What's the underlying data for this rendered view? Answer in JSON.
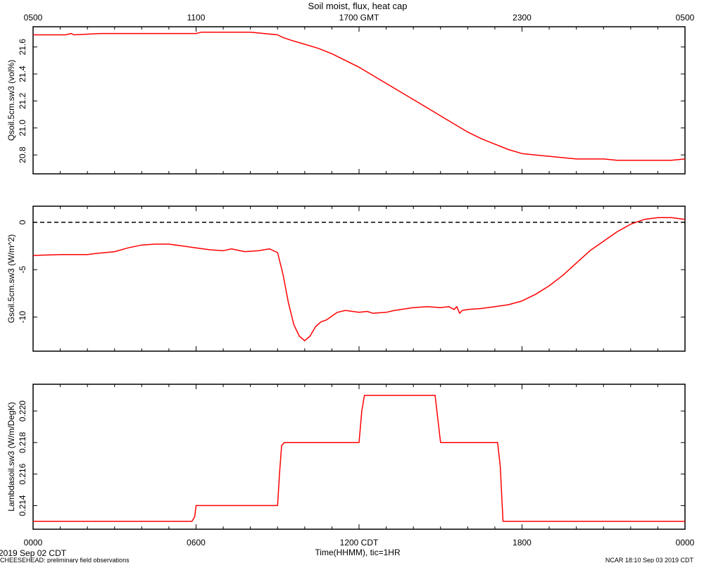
{
  "title": "Soil moist, flux, heat cap",
  "top_ticks": [
    "0500",
    "1100",
    "1700 GMT",
    "2300",
    "0500"
  ],
  "bottom_ticks": [
    "0000",
    "0600",
    "1200 CDT",
    "1800",
    "0000"
  ],
  "xlabel": "Time(HHMM), tic=1HR",
  "date_label": "2019 Sep 02 CDT",
  "footer_left": "CHEESEHEAD: preliminary field observations",
  "footer_right": "NCAR 18:10 Sep 03 2019 CDT",
  "line_color": "#ff0000",
  "chart_data": [
    {
      "type": "line",
      "ylabel": "Qsoil.5cm.sw3 (vol%)",
      "ylim": [
        20.66,
        21.75
      ],
      "yticks": [
        20.8,
        21.0,
        21.2,
        21.4,
        21.6
      ],
      "ytick_labels": [
        "20.8",
        "21.0",
        "21.2",
        "21.4",
        "21.6"
      ],
      "xlim_hours": [
        0,
        24
      ],
      "series": [
        {
          "x": [
            0,
            1.2,
            1.4,
            1.5,
            2.5,
            2.7,
            4,
            6,
            6.2,
            6.5,
            8,
            8.5,
            9,
            9.2,
            9.5,
            10,
            10.5,
            11,
            11.5,
            12,
            12.5,
            13,
            13.5,
            14,
            14.5,
            15,
            15.5,
            16,
            16.5,
            17,
            17.5,
            18,
            18.5,
            19,
            19.5,
            20,
            20.5,
            21,
            21.5,
            22,
            22.5,
            23,
            23.5,
            24
          ],
          "y": [
            21.69,
            21.69,
            21.7,
            21.69,
            21.7,
            21.7,
            21.7,
            21.7,
            21.71,
            21.71,
            21.71,
            21.7,
            21.69,
            21.67,
            21.65,
            21.62,
            21.59,
            21.55,
            21.5,
            21.45,
            21.39,
            21.33,
            21.27,
            21.21,
            21.15,
            21.09,
            21.03,
            20.97,
            20.92,
            20.88,
            20.84,
            20.81,
            20.8,
            20.79,
            20.78,
            20.77,
            20.77,
            20.77,
            20.76,
            20.76,
            20.76,
            20.76,
            20.76,
            20.77
          ]
        }
      ]
    },
    {
      "type": "line",
      "ylabel": "Gsoil.5cm.sw3 (W/m^2)",
      "ylim": [
        -13.6,
        1.7
      ],
      "yticks": [
        -10,
        -5,
        0
      ],
      "ytick_labels": [
        "-10",
        "-5",
        "0"
      ],
      "zero_line": true,
      "xlim_hours": [
        0,
        24
      ],
      "series": [
        {
          "x": [
            0,
            1,
            2,
            2.3,
            3,
            3.5,
            4,
            4.5,
            5,
            5.5,
            6,
            6.5,
            7,
            7.3,
            7.8,
            8.3,
            8.7,
            9,
            9.2,
            9.4,
            9.6,
            9.8,
            10,
            10.2,
            10.4,
            10.6,
            10.8,
            11,
            11.2,
            11.5,
            12,
            12.3,
            12.5,
            13,
            13.3,
            14,
            14.5,
            15,
            15.3,
            15.5,
            15.6,
            15.7,
            15.8,
            16,
            16.5,
            17,
            17.5,
            18,
            18.5,
            19,
            19.5,
            20,
            20.5,
            21,
            21.5,
            22,
            22.5,
            23,
            23.5,
            24
          ],
          "y": [
            -3.5,
            -3.4,
            -3.4,
            -3.3,
            -3.1,
            -2.7,
            -2.4,
            -2.3,
            -2.3,
            -2.5,
            -2.7,
            -2.9,
            -3.0,
            -2.8,
            -3.1,
            -3.0,
            -2.8,
            -3.2,
            -5.5,
            -8.5,
            -10.8,
            -12.0,
            -12.5,
            -12.0,
            -11.0,
            -10.5,
            -10.3,
            -9.9,
            -9.5,
            -9.3,
            -9.5,
            -9.4,
            -9.6,
            -9.5,
            -9.3,
            -9.0,
            -8.9,
            -9.0,
            -8.9,
            -9.2,
            -8.9,
            -9.6,
            -9.3,
            -9.2,
            -9.1,
            -8.9,
            -8.7,
            -8.3,
            -7.6,
            -6.7,
            -5.6,
            -4.3,
            -3.0,
            -2.0,
            -1.0,
            -0.2,
            0.3,
            0.5,
            0.5,
            0.3
          ]
        }
      ]
    },
    {
      "type": "line",
      "ylabel": "Lambdasoil.sw3 (W/m/DegK)",
      "ylim": [
        0.2125,
        0.2217
      ],
      "yticks": [
        0.214,
        0.216,
        0.218,
        0.22
      ],
      "ytick_labels": [
        "0.214",
        "0.216",
        "0.218",
        "0.220"
      ],
      "xlim_hours": [
        0,
        24
      ],
      "series": [
        {
          "x": [
            0,
            5.85,
            5.95,
            6.0,
            9.0,
            9.07,
            9.15,
            9.25,
            12.0,
            12.1,
            12.2,
            12.3,
            14.8,
            14.9,
            15.0,
            17.1,
            17.2,
            17.3,
            24
          ],
          "y": [
            0.213,
            0.213,
            0.2133,
            0.214,
            0.214,
            0.216,
            0.2178,
            0.218,
            0.218,
            0.22,
            0.221,
            0.221,
            0.221,
            0.2195,
            0.218,
            0.218,
            0.2165,
            0.213,
            0.213
          ]
        }
      ]
    }
  ]
}
